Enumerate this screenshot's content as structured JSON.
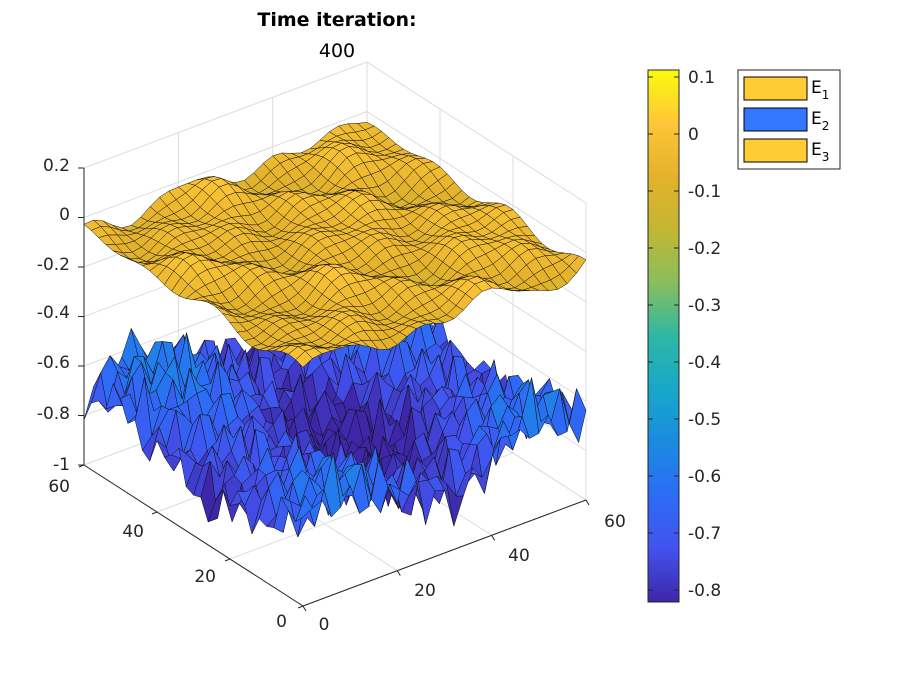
{
  "chart_data": {
    "type": "surface3d",
    "title": "Time iteration:",
    "subtitle": "400",
    "x_axis": {
      "range": [
        0,
        60
      ],
      "ticks": [
        "0",
        "20",
        "40",
        "60"
      ]
    },
    "y_axis": {
      "range": [
        0,
        60
      ],
      "ticks": [
        "0",
        "20",
        "40",
        "60"
      ]
    },
    "z_axis": {
      "range": [
        -1,
        0.2
      ],
      "ticks": [
        "-1",
        "-0.8",
        "-0.6",
        "-0.4",
        "-0.2",
        "0",
        "0.2"
      ]
    },
    "grid": true,
    "series": [
      {
        "name": "E",
        "sub": "1",
        "color": "#ffcc33",
        "mean_level": -0.05,
        "amplitude": 0.06
      },
      {
        "name": "E",
        "sub": "2",
        "color": "#3377ff",
        "mean_level": -0.75,
        "amplitude": 0.1
      },
      {
        "name": "E",
        "sub": "3",
        "color": "#ffcc33",
        "mean_level": -0.05,
        "amplitude": 0.06
      }
    ],
    "colorbar": {
      "range": [
        -0.83,
        0.11
      ],
      "ticks": [
        "0.1",
        "0",
        "-0.1",
        "-0.2",
        "-0.3",
        "-0.4",
        "-0.5",
        "-0.6",
        "-0.7",
        "-0.8"
      ],
      "colors": [
        "#f9fb0e",
        "#fec637",
        "#e4b22b",
        "#c3b633",
        "#89be5c",
        "#2fb7a4",
        "#17a8c8",
        "#1a8be0",
        "#2c6cf7",
        "#4352ee",
        "#3e26a8"
      ]
    },
    "legend": {
      "position": "top-right"
    }
  }
}
